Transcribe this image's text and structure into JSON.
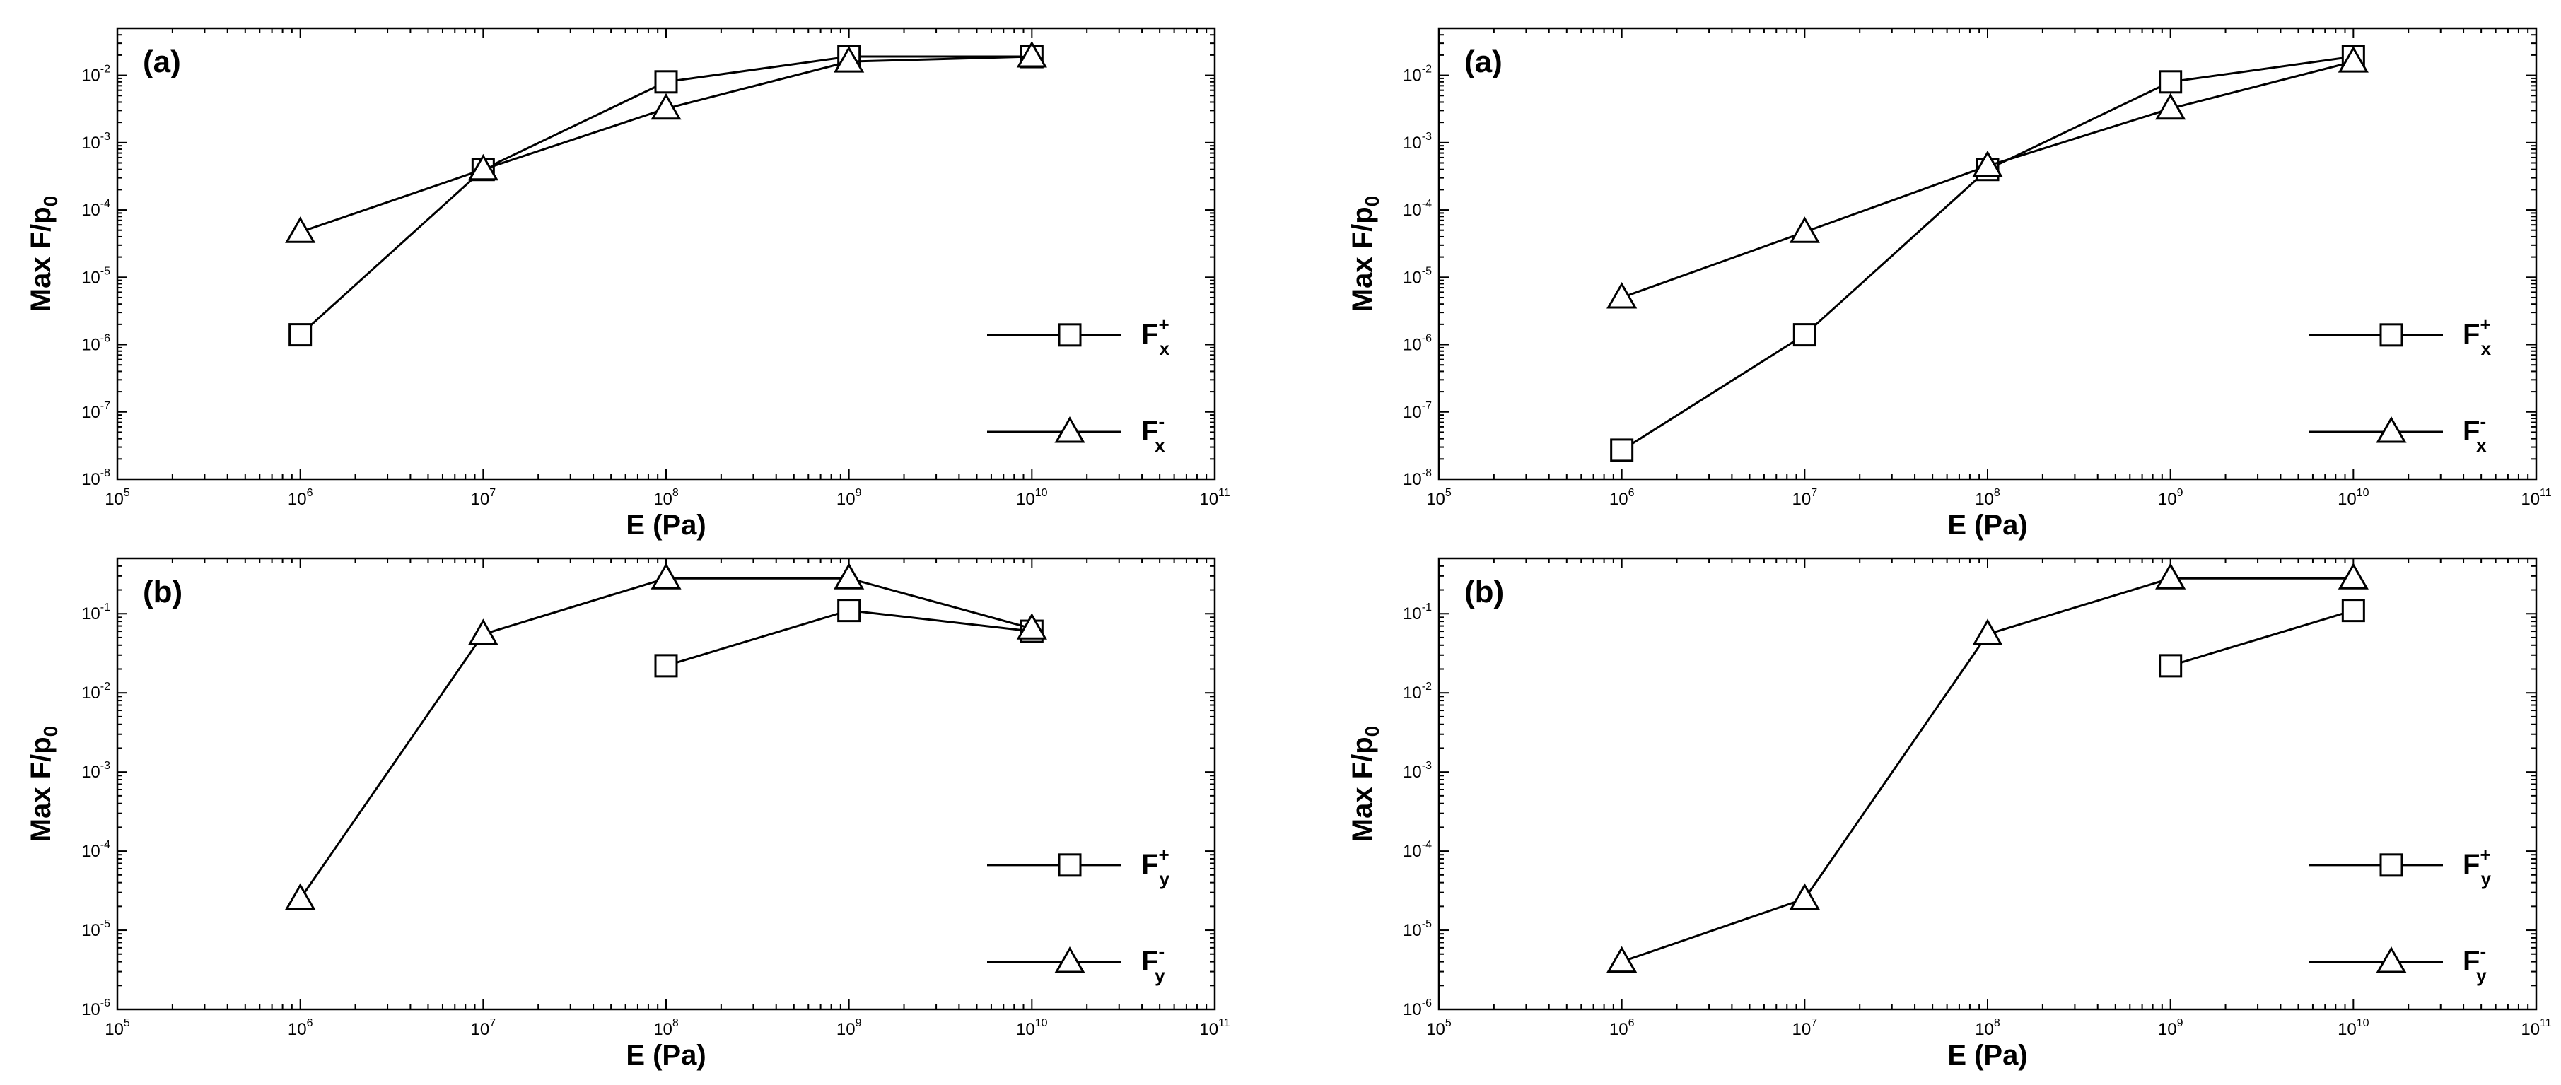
{
  "chart_data": [
    {
      "type": "line",
      "panel_label": "(a)",
      "xlabel": "E (Pa)",
      "ylabel": "Max F/p",
      "ylabel_sub": "0",
      "x_scale": "log",
      "y_scale": "log",
      "xlim": [
        100000,
        100000000000
      ],
      "ylim": [
        1e-08,
        0.05
      ],
      "x_ticks": [
        {
          "mant": "10",
          "exp": "5",
          "v": 100000
        },
        {
          "mant": "10",
          "exp": "6",
          "v": 1000000
        },
        {
          "mant": "10",
          "exp": "7",
          "v": 10000000
        },
        {
          "mant": "10",
          "exp": "8",
          "v": 100000000
        },
        {
          "mant": "10",
          "exp": "9",
          "v": 1000000000
        },
        {
          "mant": "10",
          "exp": "10",
          "v": 10000000000
        },
        {
          "mant": "10",
          "exp": "11",
          "v": 100000000000
        }
      ],
      "y_ticks": [
        {
          "mant": "10",
          "exp": "-8",
          "v": 1e-08
        },
        {
          "mant": "10",
          "exp": "-7",
          "v": 1e-07
        },
        {
          "mant": "10",
          "exp": "-6",
          "v": 1e-06
        },
        {
          "mant": "10",
          "exp": "-5",
          "v": 1e-05
        },
        {
          "mant": "10",
          "exp": "-4",
          "v": 0.0001
        },
        {
          "mant": "10",
          "exp": "-3",
          "v": 0.001
        },
        {
          "mant": "10",
          "exp": "-2",
          "v": 0.01
        }
      ],
      "legend_position": "right",
      "series": [
        {
          "name": "F",
          "sub": "x",
          "sup": "+",
          "marker": "square",
          "x": [
            1000000,
            10000000,
            100000000,
            1000000000,
            10000000000
          ],
          "values": [
            1.4e-06,
            0.0004,
            0.008,
            0.019,
            0.019
          ]
        },
        {
          "name": "F",
          "sub": "x",
          "sup": "-",
          "marker": "triangle",
          "x": [
            1000000,
            10000000,
            100000000,
            1000000000,
            10000000000
          ],
          "values": [
            4.7e-05,
            0.0004,
            0.0032,
            0.016,
            0.019
          ]
        }
      ]
    },
    {
      "type": "line",
      "panel_label": "(a)",
      "xlabel": "E (Pa)",
      "ylabel": "Max F/p",
      "ylabel_sub": "0",
      "x_scale": "log",
      "y_scale": "log",
      "xlim": [
        100000,
        100000000000
      ],
      "ylim": [
        1e-08,
        0.05
      ],
      "x_ticks": [
        {
          "mant": "10",
          "exp": "5",
          "v": 100000
        },
        {
          "mant": "10",
          "exp": "6",
          "v": 1000000
        },
        {
          "mant": "10",
          "exp": "7",
          "v": 10000000
        },
        {
          "mant": "10",
          "exp": "8",
          "v": 100000000
        },
        {
          "mant": "10",
          "exp": "9",
          "v": 1000000000
        },
        {
          "mant": "10",
          "exp": "10",
          "v": 10000000000
        },
        {
          "mant": "10",
          "exp": "11",
          "v": 100000000000
        }
      ],
      "y_ticks": [
        {
          "mant": "10",
          "exp": "-8",
          "v": 1e-08
        },
        {
          "mant": "10",
          "exp": "-7",
          "v": 1e-07
        },
        {
          "mant": "10",
          "exp": "-6",
          "v": 1e-06
        },
        {
          "mant": "10",
          "exp": "-5",
          "v": 1e-05
        },
        {
          "mant": "10",
          "exp": "-4",
          "v": 0.0001
        },
        {
          "mant": "10",
          "exp": "-3",
          "v": 0.001
        },
        {
          "mant": "10",
          "exp": "-2",
          "v": 0.01
        }
      ],
      "legend_position": "right",
      "series": [
        {
          "name": "F",
          "sub": "x",
          "sup": "+",
          "marker": "square",
          "x": [
            1000000,
            10000000,
            100000000,
            1000000000,
            10000000000
          ],
          "values": [
            2.7e-08,
            1.4e-06,
            0.0004,
            0.008,
            0.019
          ]
        },
        {
          "name": "F",
          "sub": "x",
          "sup": "-",
          "marker": "triangle",
          "x": [
            1000000,
            10000000,
            100000000,
            1000000000,
            10000000000
          ],
          "values": [
            5e-06,
            4.7e-05,
            0.00045,
            0.0032,
            0.016
          ]
        }
      ]
    },
    {
      "type": "line",
      "panel_label": "(b)",
      "xlabel": "E (Pa)",
      "ylabel": "Max F/p",
      "ylabel_sub": "0",
      "x_scale": "log",
      "y_scale": "log",
      "xlim": [
        100000,
        100000000000
      ],
      "ylim": [
        1e-06,
        0.5
      ],
      "x_ticks": [
        {
          "mant": "10",
          "exp": "5",
          "v": 100000
        },
        {
          "mant": "10",
          "exp": "6",
          "v": 1000000
        },
        {
          "mant": "10",
          "exp": "7",
          "v": 10000000
        },
        {
          "mant": "10",
          "exp": "8",
          "v": 100000000
        },
        {
          "mant": "10",
          "exp": "9",
          "v": 1000000000
        },
        {
          "mant": "10",
          "exp": "10",
          "v": 10000000000
        },
        {
          "mant": "10",
          "exp": "11",
          "v": 100000000000
        }
      ],
      "y_ticks": [
        {
          "mant": "10",
          "exp": "-6",
          "v": 1e-06
        },
        {
          "mant": "10",
          "exp": "-5",
          "v": 1e-05
        },
        {
          "mant": "10",
          "exp": "-4",
          "v": 0.0001
        },
        {
          "mant": "10",
          "exp": "-3",
          "v": 0.001
        },
        {
          "mant": "10",
          "exp": "-2",
          "v": 0.01
        },
        {
          "mant": "10",
          "exp": "-1",
          "v": 0.1
        }
      ],
      "legend_position": "right",
      "series": [
        {
          "name": "F",
          "sub": "y",
          "sup": "+",
          "marker": "square",
          "x": [
            100000000,
            1000000000,
            10000000000
          ],
          "values": [
            0.022,
            0.11,
            0.06
          ]
        },
        {
          "name": "F",
          "sub": "y",
          "sup": "-",
          "marker": "triangle",
          "x": [
            1000000,
            10000000,
            100000000,
            1000000000,
            10000000000
          ],
          "values": [
            2.5e-05,
            0.055,
            0.28,
            0.28,
            0.065
          ]
        }
      ]
    },
    {
      "type": "line",
      "panel_label": "(b)",
      "xlabel": "E (Pa)",
      "ylabel": "Max F/p",
      "ylabel_sub": "0",
      "x_scale": "log",
      "y_scale": "log",
      "xlim": [
        100000,
        100000000000
      ],
      "ylim": [
        1e-06,
        0.5
      ],
      "x_ticks": [
        {
          "mant": "10",
          "exp": "5",
          "v": 100000
        },
        {
          "mant": "10",
          "exp": "6",
          "v": 1000000
        },
        {
          "mant": "10",
          "exp": "7",
          "v": 10000000
        },
        {
          "mant": "10",
          "exp": "8",
          "v": 100000000
        },
        {
          "mant": "10",
          "exp": "9",
          "v": 1000000000
        },
        {
          "mant": "10",
          "exp": "10",
          "v": 10000000000
        },
        {
          "mant": "10",
          "exp": "11",
          "v": 100000000000
        }
      ],
      "y_ticks": [
        {
          "mant": "10",
          "exp": "-6",
          "v": 1e-06
        },
        {
          "mant": "10",
          "exp": "-5",
          "v": 1e-05
        },
        {
          "mant": "10",
          "exp": "-4",
          "v": 0.0001
        },
        {
          "mant": "10",
          "exp": "-3",
          "v": 0.001
        },
        {
          "mant": "10",
          "exp": "-2",
          "v": 0.01
        },
        {
          "mant": "10",
          "exp": "-1",
          "v": 0.1
        }
      ],
      "legend_position": "right",
      "series": [
        {
          "name": "F",
          "sub": "y",
          "sup": "+",
          "marker": "square",
          "x": [
            1000000000,
            10000000000
          ],
          "values": [
            0.022,
            0.11
          ]
        },
        {
          "name": "F",
          "sub": "y",
          "sup": "-",
          "marker": "triangle",
          "x": [
            1000000,
            10000000,
            100000000,
            1000000000,
            10000000000
          ],
          "values": [
            4e-06,
            2.5e-05,
            0.055,
            0.28,
            0.28
          ]
        }
      ]
    }
  ]
}
